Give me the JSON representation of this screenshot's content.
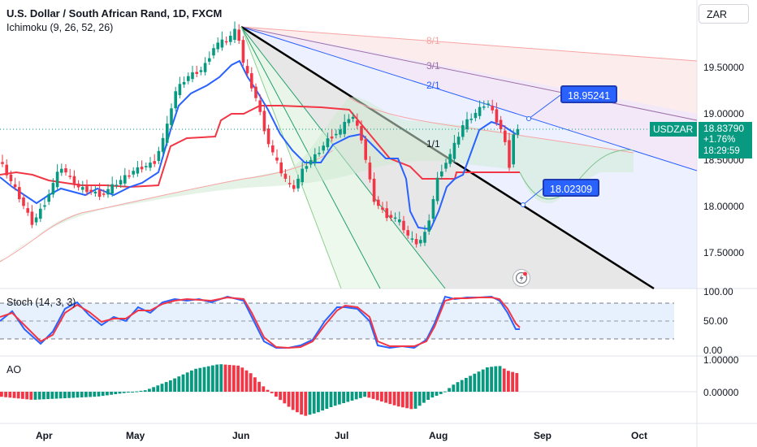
{
  "header": {
    "title": "U.S. Dollar / South African Rand, 1D, FXCM",
    "indicator": "Ichimoku (9, 26, 52, 26)",
    "currency": "ZAR"
  },
  "price_axis": {
    "ticks": [
      "19.50000",
      "19.00000",
      "18.50000",
      "18.00000",
      "17.50000"
    ]
  },
  "current_price": {
    "symbol": "USDZAR",
    "price": "18.83790",
    "change": "+1.76%",
    "countdown": "18:29:59"
  },
  "callouts": {
    "upper": "18.95241",
    "lower": "18.02309"
  },
  "fan_labels": [
    "8/1",
    "3/1",
    "2/1",
    "1/1"
  ],
  "stoch": {
    "label": "Stoch (14, 3, 3)",
    "ticks": [
      "100.00",
      "50.00",
      "0.00"
    ]
  },
  "ao": {
    "label": "AO",
    "ticks": [
      "1.00000",
      "0.00000"
    ]
  },
  "time_axis": [
    "Apr",
    "May",
    "Jun",
    "Jul",
    "Aug",
    "Sep",
    "Oct"
  ],
  "colors": {
    "up": "#089981",
    "down": "#f23645",
    "accent": "#2962ff",
    "line": "#131722"
  }
}
